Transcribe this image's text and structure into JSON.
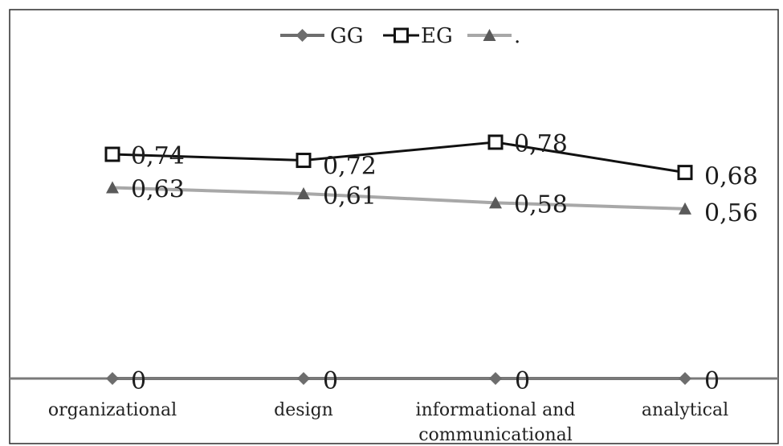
{
  "chart_data": {
    "type": "line",
    "categories": [
      "organizational",
      "design",
      "informational and communicational",
      "analytical"
    ],
    "category_lines": [
      [
        "organizational"
      ],
      [
        "design"
      ],
      [
        "informational and",
        "communicational"
      ],
      [
        "analytical"
      ]
    ],
    "series": [
      {
        "name": "GG",
        "values": [
          0,
          0,
          0,
          0
        ],
        "labels": [
          "0",
          "0",
          "0",
          "0"
        ],
        "color": "#6d6d6d",
        "marker": "diamond"
      },
      {
        "name": "EG",
        "values": [
          0.74,
          0.72,
          0.78,
          0.68
        ],
        "labels": [
          "0,74",
          "0,72",
          "0,78",
          "0,68"
        ],
        "color": "#111111",
        "marker": "square-open"
      },
      {
        "name": ".",
        "values": [
          0.63,
          0.61,
          0.58,
          0.56
        ],
        "labels": [
          "0,63",
          "0,61",
          "0,58",
          "0,56"
        ],
        "color": "#a8a8a8",
        "marker": "triangle"
      }
    ],
    "ylim": [
      0,
      1.2
    ],
    "title": "",
    "xlabel": "",
    "ylabel": "",
    "grid": false,
    "legend": "top-center"
  }
}
